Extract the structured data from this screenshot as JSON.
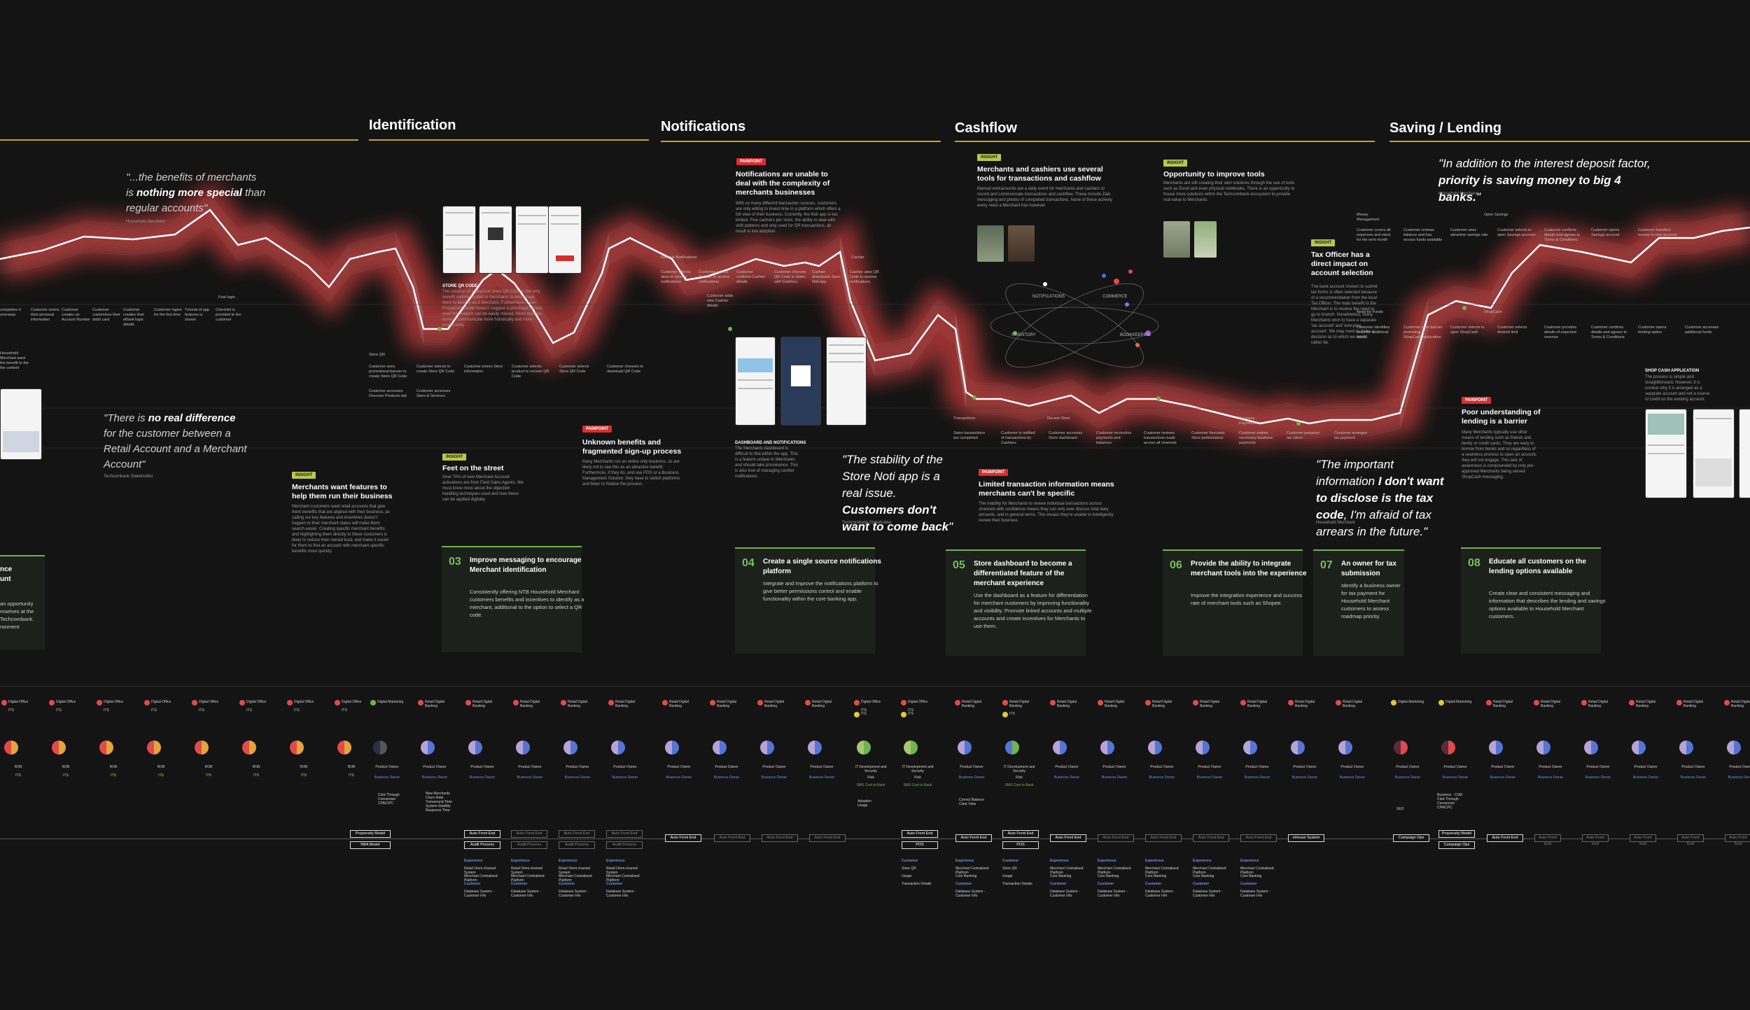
{
  "sections": [
    {
      "title": "Identification"
    },
    {
      "title": "Notifications"
    },
    {
      "title": "Cashflow"
    },
    {
      "title": "Saving / Lending"
    }
  ],
  "quotes": {
    "q1_pre": "\"...the benefits of merchants is ",
    "q1_bold": "nothing more special",
    "q1_post": " than regular accounts\".",
    "q1_attr": "Household Merchant",
    "q2_pre": "\"There is ",
    "q2_bold": "no real difference",
    "q2_post": " for the customer between a Retail Account and a Merchant Account\"",
    "q2_attr": "Techcombank Stakeholder",
    "q3_pre": "\"The stability of the Store Noti app is a real issue. ",
    "q3_bold": "Customers don't want to come back",
    "q3_post": "\"",
    "q3_attr": "Techcombank Stakeholder",
    "q4_pre": "\"The important information ",
    "q4_bold": "I don't want to disclose is the tax code",
    "q4_post": ", I'm afraid of tax arrears in the future.\"",
    "q4_attr": "Household Merchant",
    "q5_pre": "\"In addition to the interest deposit factor, ",
    "q5_bold": "priority is saving money to big 4 banks.",
    "q5_post": "\"",
    "q5_attr": "Household Merchant"
  },
  "tags": {
    "green": "INSIGHT",
    "red": "PAINPOINT"
  },
  "notes": {
    "n1_head": "Merchants want features to help them run their business",
    "n1_body": "Merchant customers want retail accounts that give them benefits that are aligned with their business, as calling out key features and incentives doesn't happen to their merchant status will make them search easier. Creating specific merchant benefits and highlighting them directly to these customers is likely to reduce their mental load, and make it easier for them to find an account with merchant-specific benefits more quickly.",
    "n2_head": "Feet on the street",
    "n2_body": "Over 70% of new Merchant Account activations are from Field Sales Agents. We must know more about the objection handling techniques used and how these can be applied digitally.",
    "n3_head": "STORE QR CODE",
    "n3_body": "The creation of a physical Store QR Code is the only benefit communicated to Merchants to encourage them to identify as a Merchant. Furthermore, if our Propensity Model doesn't suggest a prioritised banner, even this feature can be easily missed. More must be done to communicate more holistically and more prominently.",
    "n4_head": "Notifications are unable to deal with the complexity of merchants businesses",
    "n4_body": "With so many different transaction sources, customers are only willing to invest time in a platform which offers a full view of their business. Currently, the Noti app is too limited. Five cashiers per store, the ability to deal with shift patterns and only used for QR transactions, all result in low adoption.",
    "n5_head": "Unknown benefits and fragmented sign-up process",
    "n5_body": "Many Merchants run an online only business, so are likely not to see this as an attractive benefit. Furthermore, if they do, and use POS or a Business Management Solution, they have to switch platforms and flows to finalise the process.",
    "n6_head": "DASHBOARD AND NOTIFICATIONS",
    "n6_body": "The Merchants dashboard is difficult to find within the app. This is a feature unique to Merchants and should take prominence. This is also true of managing cashier notifications.",
    "n7_head": "Merchants and cashiers use several tools for transactions and cashflow",
    "n7_body": "Manual workarounds are a daily event for merchants and cashiers to record and communicate transactions and cashflow. These include Zalo messaging and photos of completed transactions. None of these actively every need a Merchant has however.",
    "n8_head": "Opportunity to improve tools",
    "n8_body": "Merchants are still creating their own solutions through the use of tools such as Excel and even physical notebooks. There is an opportunity to house more solutions within the Techcombank ecosystem to provide real value to Merchants.",
    "n9_head": "Limited transaction information means merchants can't be specific",
    "n9_body": "The inability for Merchants to review individual transactions across channels with confidence means they can only ever discuss total daily amounts, and in general terms. This means they're unable to intelligently review their business.",
    "n10_head": "Tax Officer has a direct impact on account selection",
    "n10_body": "The bank account chosen to submit tax forms is often selected because of a recommendation from the local Tax Officer. The main benefit to the Merchant is to receive the need to go to branch. Nonetheless, many Merchants wish to have a separate 'tax account' and 'everyday account'. We may need to make a decision as to which we would rather be.",
    "n11_head": "Poor understanding of lending is a barrier",
    "n11_body": "Many Merchants typically use other means of lending such as friends and family or credit cards. They are wary to borrow from banks and so regardless of a seamless process to open an account, they will not engage. This lack of awareness is compounded by only pre-approved Merchants being served ShopCash messaging.",
    "n12_head": "SHOP CASH APPLICATION",
    "n12_body": "The process is simple and straightforward. However, it is unclear why it is arranged as a separate account and not a source of credit on the existing account."
  },
  "cards": [
    {
      "num": "03",
      "head": "Improve messaging to encourage Merchant identification",
      "body": "Consistently offering NTB Household Merchant customers benefits and incentives to identify as a merchant, additional to the option to select a QR code."
    },
    {
      "num": "04",
      "head": "Create a single source notifications platform",
      "body": "Integrate and improve the notifications platform to give better permissions control and enable functionality within the core banking app."
    },
    {
      "num": "05",
      "head": "Store dashboard to become a differentiated feature of the merchant experience",
      "body": "Use the dashboard as a feature for differentiation for merchant customers by improving functionality and visibility. Promote linked accounts and multiple accounts and create incentives for Merchants to use them."
    },
    {
      "num": "06",
      "head": "Provide the ability to integrate merchant tools into the experience",
      "body": "Improve the integration experience and success rate of merchant tools such as Shopee."
    },
    {
      "num": "07",
      "head": "An owner for tax submission",
      "body": "Identify a business owner for tax payment for Household Merchant customers to assess roadmap priority."
    },
    {
      "num": "08",
      "head": "Educate all customers on the lending options available",
      "body": "Create clear and consistent messaging and information that describes the lending and savings options available to Household Merchant customers."
    }
  ],
  "partial_card": {
    "head1": "nce",
    "head2": "unt",
    "body": "an opportunity mselves at the Techcombank. ronment"
  },
  "journey": {
    "steps_top": [
      "completes d overseas",
      "Customer enters their personal information",
      "Customer creates an Account Number",
      "Customer customises their debit card",
      "Customer creates their eBank login details",
      "Customer logins for the first time",
      "Tutorial of app features is shown",
      "Checklist is provided to the customer"
    ],
    "store_qr": "Store QR",
    "steps_qr": [
      "Customer sees promotional banner to create Store QR Code",
      "Customer selects to create Store QR Code",
      "Customer enters Store information",
      "Customer selects product to receive QR Code",
      "Customer selects Store QR Code",
      "Customer chooses to download QR Code"
    ],
    "steps_qr2": [
      "Customer accesses Discover Products tab",
      "Customer accesses Store & Services"
    ],
    "first_login": "First login",
    "receive_notif": "Receive Notifications",
    "cashier": "Cashier",
    "steps_notif": [
      "Customer selects store to receive notifications",
      "Customer selects Cashier to receive notifications",
      "Customer confirms Cashier details",
      "Customer chooses QR Code to share with Cashiers",
      "Cashier downloads Store Noti app",
      "Cashier uses QR Code to receive notifications",
      "Customer adds new Cashier details"
    ],
    "transactions": "Transactions",
    "review_store": "Review Store",
    "business_payments": "Business Payments",
    "steps_cash": [
      "Sales transactions are completed",
      "Customer is notified of transactions by Cashiers",
      "Customer accesses Store dashboard",
      "Customer reconciles payments and balances",
      "Customer reviews transactions made across all channels",
      "Customer forecasts Store performance",
      "Customer makes necessary business payments",
      "Customer prepares tax return",
      "Customer arranges tax payment"
    ],
    "money_mgmt": "Money Management",
    "open_savings": "Open Savings",
    "need_funds": "Need for Funds",
    "shopcash": "ShopCash",
    "steps_save": [
      "Customer covers all expenses and stock for the next month",
      "Customer reviews balance and has excess funds available",
      "Customer sees attractive savings rate",
      "Customer selects to open Savings account",
      "Customer confirms details and agrees to Terms & Conditions",
      "Customer opens Savings account",
      "Customer transfers money to new account"
    ],
    "steps_lend": [
      "Customer identifies need for additional funds",
      "Customer sees banner promoting a ShopCash application",
      "Customer selects to open ShopCash",
      "Customer selects desired limit",
      "Customer provides details of expected revenue",
      "Customer confirms details and agrees to Terms & Conditions",
      "Customer opens lending option",
      "Customer accesses additional funds"
    ],
    "left_partial": "Household Merchant want the benefit to the the content"
  },
  "charts_labels": {
    "notifications": "NOTIFICATIONS",
    "commerce": "COMMERCE",
    "inventory": "INVENTORY",
    "bookkeeping": "BOOKKEEPING"
  },
  "lanes": {
    "digital_office": "Digital Office",
    "its": "ITS",
    "digital_marketing": "Digital Marketing",
    "retail_digital_banking": "Retail Digital Banking",
    "rob": "ROB",
    "product_owner": "Product Owner",
    "business_owner": "Business Owner",
    "it_dev": "IT Development and Security",
    "it_dev_sub": "Risk",
    "sms": "SMS Cost to Bank"
  },
  "metrics": {
    "m1": "Click Through\nConversion\nCPA/CPC",
    "m2": "New Merchants\nChurn Rate\nTurnaround Time\nSystem Stability\nResponse Time",
    "m3": "Adoption\nUsage",
    "m4": "Correct Balance\nClear View",
    "m5": "Business - CSM\nClick Through\nConversion\nCPA/CPC",
    "m6": "SEO"
  },
  "systems": {
    "propensity": "Propensity Model",
    "nba": "NBA Model",
    "auto_front": "Auto Front End",
    "audit_process": "Audit Process",
    "store_qr": "Store QR",
    "pos": "POS",
    "ehouse": "eHouse System",
    "campaign_ops": "Campaign Ops",
    "experience": "Experience",
    "retail_omni": "Retail Omni-channel System",
    "merchant_platform": "Merchant Centralised Platform",
    "customer": "Customer",
    "database": "Database System - Customer Info",
    "core_banking": "Core Banking",
    "usage": "Usage",
    "txn_details": "Transaction Details"
  },
  "colors": {
    "accent": "#c6a227",
    "green": "#74c05a",
    "red": "#d62f2f",
    "bg": "#141414"
  }
}
